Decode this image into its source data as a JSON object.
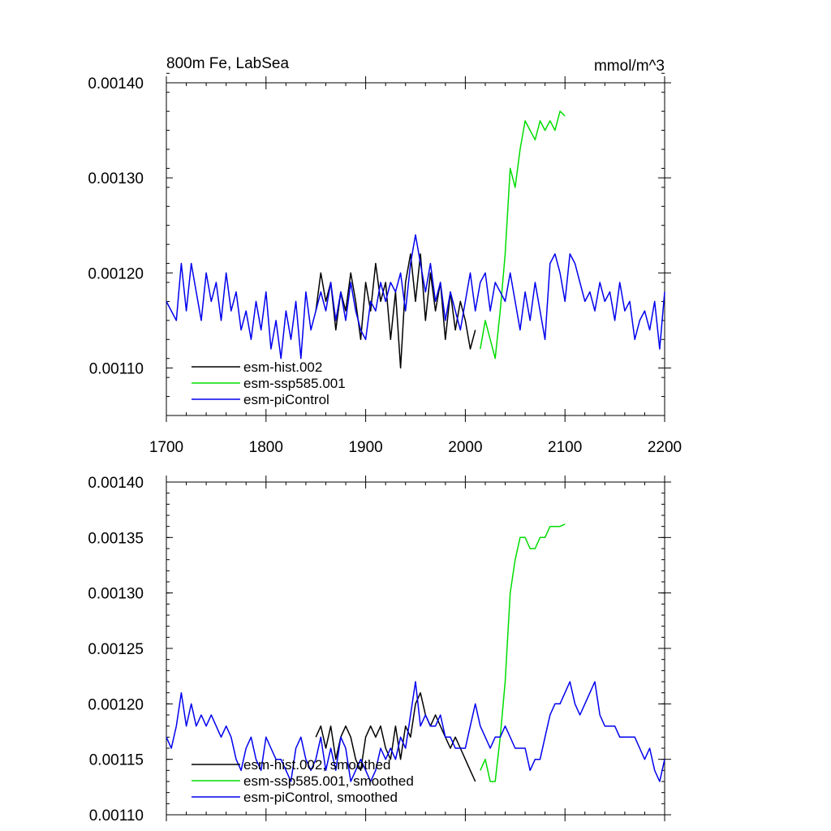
{
  "chart_data": [
    {
      "type": "line",
      "title": "800m Fe, LabSea",
      "units": "mmol/m^3",
      "xlim": [
        1700,
        2200
      ],
      "ylim": [
        0.00105,
        0.0014
      ],
      "xticks": [
        1700,
        1800,
        1900,
        2000,
        2100,
        2200
      ],
      "xtick_labels": [
        "1700",
        "1800",
        "1900",
        "2000",
        "2100",
        "2200"
      ],
      "yticks": [
        0.0011,
        0.0012,
        0.0013,
        0.0014
      ],
      "ytick_labels": [
        "0.00110",
        "0.00120",
        "0.00130",
        "0.00140"
      ],
      "legend": [
        "esm-hist.002",
        "esm-ssp585.001",
        "esm-piControl"
      ],
      "series": [
        {
          "name": "esm-hist.002",
          "color": "#000000",
          "x": [
            1850,
            1855,
            1860,
            1865,
            1870,
            1875,
            1880,
            1885,
            1890,
            1895,
            1900,
            1905,
            1910,
            1915,
            1920,
            1925,
            1930,
            1935,
            1940,
            1945,
            1950,
            1955,
            1960,
            1965,
            1970,
            1975,
            1980,
            1985,
            1990,
            1995,
            2000,
            2005,
            2010
          ],
          "y": [
            0.00116,
            0.0012,
            0.00117,
            0.00119,
            0.00114,
            0.00118,
            0.00116,
            0.0012,
            0.00117,
            0.00113,
            0.00119,
            0.00116,
            0.00121,
            0.00117,
            0.00119,
            0.00113,
            0.00118,
            0.0011,
            0.00119,
            0.00122,
            0.00117,
            0.00122,
            0.00115,
            0.0012,
            0.00116,
            0.00119,
            0.00113,
            0.00118,
            0.00114,
            0.00117,
            0.00115,
            0.00112,
            0.00114
          ]
        },
        {
          "name": "esm-ssp585.001",
          "color": "#00dd00",
          "x": [
            2015,
            2020,
            2025,
            2030,
            2035,
            2040,
            2045,
            2050,
            2055,
            2060,
            2065,
            2070,
            2075,
            2080,
            2085,
            2090,
            2095,
            2100
          ],
          "y": [
            0.00112,
            0.00115,
            0.00113,
            0.00111,
            0.00116,
            0.00122,
            0.00131,
            0.00129,
            0.00133,
            0.00136,
            0.00135,
            0.00134,
            0.00136,
            0.00135,
            0.00136,
            0.00135,
            0.00137,
            0.001365
          ]
        },
        {
          "name": "esm-piControl",
          "color": "#0000ee",
          "x": [
            1700,
            1705,
            1710,
            1715,
            1720,
            1725,
            1730,
            1735,
            1740,
            1745,
            1750,
            1755,
            1760,
            1765,
            1770,
            1775,
            1780,
            1785,
            1790,
            1795,
            1800,
            1805,
            1810,
            1815,
            1820,
            1825,
            1830,
            1835,
            1840,
            1845,
            1850,
            1855,
            1860,
            1865,
            1870,
            1875,
            1880,
            1885,
            1890,
            1895,
            1900,
            1905,
            1910,
            1915,
            1920,
            1925,
            1930,
            1935,
            1940,
            1945,
            1950,
            1955,
            1960,
            1965,
            1970,
            1975,
            1980,
            1985,
            1990,
            1995,
            2000,
            2005,
            2010,
            2015,
            2020,
            2025,
            2030,
            2035,
            2040,
            2045,
            2050,
            2055,
            2060,
            2065,
            2070,
            2075,
            2080,
            2085,
            2090,
            2095,
            2100,
            2105,
            2110,
            2115,
            2120,
            2125,
            2130,
            2135,
            2140,
            2145,
            2150,
            2155,
            2160,
            2165,
            2170,
            2175,
            2180,
            2185,
            2190,
            2195,
            2200
          ],
          "y": [
            0.00117,
            0.00116,
            0.00115,
            0.00121,
            0.00116,
            0.00121,
            0.00118,
            0.00115,
            0.0012,
            0.00117,
            0.00119,
            0.00115,
            0.0012,
            0.00116,
            0.00118,
            0.00114,
            0.00116,
            0.00113,
            0.00117,
            0.00114,
            0.00118,
            0.00112,
            0.00115,
            0.00111,
            0.00116,
            0.00113,
            0.00117,
            0.00111,
            0.00118,
            0.00114,
            0.00116,
            0.00118,
            0.00116,
            0.00119,
            0.00115,
            0.00118,
            0.00115,
            0.00119,
            0.00116,
            0.00114,
            0.00113,
            0.00117,
            0.00116,
            0.00119,
            0.00117,
            0.00119,
            0.00118,
            0.0012,
            0.00116,
            0.00121,
            0.00124,
            0.00121,
            0.00118,
            0.00121,
            0.00117,
            0.00119,
            0.00115,
            0.00118,
            0.00116,
            0.00114,
            0.00117,
            0.0012,
            0.00116,
            0.00119,
            0.0012,
            0.00116,
            0.00119,
            0.00118,
            0.00117,
            0.0012,
            0.00117,
            0.00114,
            0.00118,
            0.00115,
            0.00119,
            0.00116,
            0.00113,
            0.00121,
            0.00122,
            0.0012,
            0.00117,
            0.00122,
            0.00121,
            0.00119,
            0.00117,
            0.00118,
            0.00116,
            0.00119,
            0.00117,
            0.00118,
            0.00115,
            0.00119,
            0.00116,
            0.00117,
            0.00113,
            0.00115,
            0.00116,
            0.00114,
            0.00117,
            0.00112,
            0.00118
          ]
        }
      ]
    },
    {
      "type": "line",
      "xlim": [
        1700,
        2200
      ],
      "ylim": [
        0.0011,
        0.0014
      ],
      "xticks": [
        1700,
        1800,
        1900,
        2000,
        2100,
        2200
      ],
      "yticks": [
        0.0011,
        0.00115,
        0.0012,
        0.00125,
        0.0013,
        0.00135,
        0.0014
      ],
      "ytick_labels": [
        "0.00110",
        "0.00115",
        "0.00120",
        "0.00125",
        "0.00130",
        "0.00135",
        "0.00140"
      ],
      "legend": [
        "esm-hist.002, smoothed",
        "esm-ssp585.001, smoothed",
        "esm-piControl, smoothed"
      ],
      "series": [
        {
          "name": "esm-hist.002, smoothed",
          "color": "#000000",
          "x": [
            1850,
            1855,
            1860,
            1865,
            1870,
            1875,
            1880,
            1885,
            1890,
            1895,
            1900,
            1905,
            1910,
            1915,
            1920,
            1925,
            1930,
            1935,
            1940,
            1945,
            1950,
            1955,
            1960,
            1965,
            1970,
            1975,
            1980,
            1985,
            1990,
            1995,
            2000,
            2005,
            2010
          ],
          "y": [
            0.00117,
            0.00118,
            0.00116,
            0.00118,
            0.00115,
            0.00117,
            0.00118,
            0.00117,
            0.00115,
            0.00114,
            0.00117,
            0.00118,
            0.00117,
            0.00118,
            0.00116,
            0.00115,
            0.00118,
            0.00115,
            0.00118,
            0.00117,
            0.0012,
            0.00121,
            0.00119,
            0.00118,
            0.00119,
            0.00118,
            0.00117,
            0.00116,
            0.00117,
            0.00116,
            0.00115,
            0.00114,
            0.00113
          ]
        },
        {
          "name": "esm-ssp585.001, smoothed",
          "color": "#00dd00",
          "x": [
            2015,
            2020,
            2025,
            2030,
            2035,
            2040,
            2045,
            2050,
            2055,
            2060,
            2065,
            2070,
            2075,
            2080,
            2085,
            2090,
            2095,
            2100
          ],
          "y": [
            0.00114,
            0.00115,
            0.00113,
            0.00113,
            0.00117,
            0.00122,
            0.0013,
            0.00133,
            0.00135,
            0.00135,
            0.00134,
            0.00134,
            0.00135,
            0.00135,
            0.00136,
            0.00136,
            0.00136,
            0.001362
          ]
        },
        {
          "name": "esm-piControl, smoothed",
          "color": "#0000ee",
          "x": [
            1700,
            1705,
            1710,
            1715,
            1720,
            1725,
            1730,
            1735,
            1740,
            1745,
            1750,
            1755,
            1760,
            1765,
            1770,
            1775,
            1780,
            1785,
            1790,
            1795,
            1800,
            1805,
            1810,
            1815,
            1820,
            1825,
            1830,
            1835,
            1840,
            1845,
            1850,
            1855,
            1860,
            1865,
            1870,
            1875,
            1880,
            1885,
            1890,
            1895,
            1900,
            1905,
            1910,
            1915,
            1920,
            1925,
            1930,
            1935,
            1940,
            1945,
            1950,
            1955,
            1960,
            1965,
            1970,
            1975,
            1980,
            1985,
            1990,
            1995,
            2000,
            2005,
            2010,
            2015,
            2020,
            2025,
            2030,
            2035,
            2040,
            2045,
            2050,
            2055,
            2060,
            2065,
            2070,
            2075,
            2080,
            2085,
            2090,
            2095,
            2100,
            2105,
            2110,
            2115,
            2120,
            2125,
            2130,
            2135,
            2140,
            2145,
            2150,
            2155,
            2160,
            2165,
            2170,
            2175,
            2180,
            2185,
            2190,
            2195,
            2200
          ],
          "y": [
            0.00117,
            0.00116,
            0.00118,
            0.00121,
            0.00118,
            0.0012,
            0.00118,
            0.00119,
            0.00118,
            0.00119,
            0.00118,
            0.00117,
            0.00118,
            0.00117,
            0.00115,
            0.00114,
            0.00116,
            0.00117,
            0.00115,
            0.00114,
            0.00117,
            0.00116,
            0.00115,
            0.00115,
            0.00114,
            0.00113,
            0.00116,
            0.00117,
            0.00115,
            0.00114,
            0.00115,
            0.00117,
            0.00114,
            0.00116,
            0.00114,
            0.00117,
            0.00116,
            0.00113,
            0.00114,
            0.00115,
            0.00114,
            0.00113,
            0.00114,
            0.00116,
            0.00115,
            0.00116,
            0.00115,
            0.00117,
            0.00116,
            0.00119,
            0.00122,
            0.00118,
            0.00119,
            0.00118,
            0.00118,
            0.00119,
            0.00117,
            0.00117,
            0.00116,
            0.00116,
            0.00116,
            0.00118,
            0.0012,
            0.00118,
            0.00117,
            0.00116,
            0.00117,
            0.00117,
            0.00118,
            0.00117,
            0.00116,
            0.00116,
            0.00116,
            0.00114,
            0.00115,
            0.00115,
            0.00117,
            0.00119,
            0.0012,
            0.0012,
            0.00121,
            0.00122,
            0.0012,
            0.00119,
            0.0012,
            0.00121,
            0.00122,
            0.00119,
            0.00118,
            0.00118,
            0.00118,
            0.00117,
            0.00117,
            0.00117,
            0.00117,
            0.00116,
            0.00115,
            0.00116,
            0.00114,
            0.00113,
            0.00115
          ]
        }
      ]
    }
  ]
}
